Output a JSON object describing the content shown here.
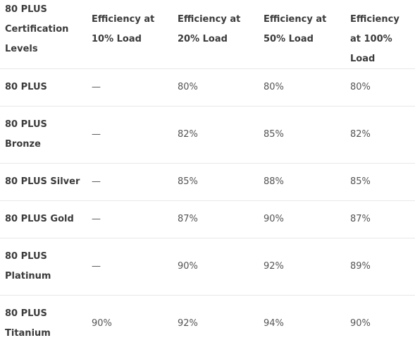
{
  "table": {
    "headers": [
      "80 PLUS Certification Levels",
      "Efficiency at 10% Load",
      "Efficiency at 20% Load",
      "Efficiency at 50% Load",
      "Efficiency at 100% Load"
    ],
    "rows": [
      [
        "80 PLUS",
        "—",
        "80%",
        "80%",
        "80%"
      ],
      [
        "80 PLUS Bronze",
        "—",
        "82%",
        "85%",
        "82%"
      ],
      [
        "80 PLUS Silver",
        "—",
        "85%",
        "88%",
        "85%"
      ],
      [
        "80 PLUS Gold",
        "—",
        "87%",
        "90%",
        "87%"
      ],
      [
        "80 PLUS Platinum",
        "—",
        "90%",
        "92%",
        "89%"
      ],
      [
        "80 PLUS Titanium",
        "90%",
        "92%",
        "94%",
        "90%"
      ]
    ]
  }
}
